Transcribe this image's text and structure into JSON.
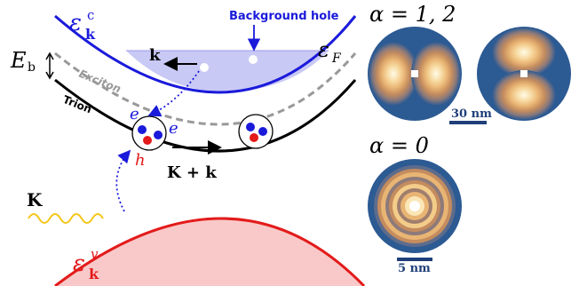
{
  "band_diagram": {
    "conduction_band_label": "ε",
    "conduction_band_sup": "c",
    "conduction_band_sub": "k",
    "valence_band_label": "ε",
    "valence_band_sup": "v",
    "valence_band_sub": "k",
    "fermi_label": "ε",
    "fermi_sub": "F",
    "binding_energy_label": "E",
    "binding_energy_sub": "b",
    "background_hole_label": "Background hole",
    "k_label": "k",
    "exciton_label": "Exciton",
    "trion_label": "Trion",
    "electron_label_1": "e",
    "electron_label_2": "e",
    "hole_label": "h",
    "photon_momentum_label": "K",
    "total_momentum_label": "K + k",
    "colors": {
      "conduction": "#1a1adb",
      "valence": "#e31b1b",
      "fermi_fill": "#c9c9f5",
      "valence_fill": "#f9c9c9",
      "photon": "#f5c518",
      "exciton_dash": "#999999"
    }
  },
  "wavefunction_panels": {
    "alpha_12_label": "α = 1, 2",
    "alpha_0_label": "α = 0",
    "scale_bar_top": "30 nm",
    "scale_bar_bottom": "5 nm",
    "colors": {
      "background": "#2c5a93",
      "scale_bar": "#1f3f7a"
    }
  }
}
